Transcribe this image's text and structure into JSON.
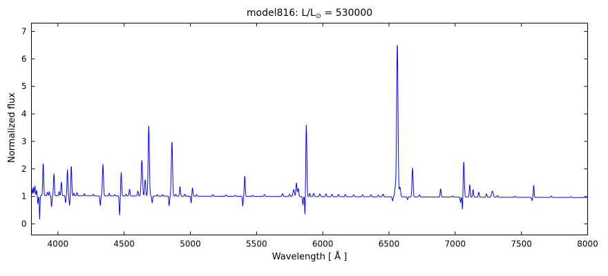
{
  "chart_data": {
    "type": "line",
    "title": {
      "prefix": "model816: L/L",
      "sub": "⊙",
      "suffix": " = 530000"
    },
    "xlabel": "Wavelength [ Å ]",
    "ylabel": "Normalized flux",
    "xlim": [
      3800,
      8000
    ],
    "ylim": [
      -0.4,
      7.3
    ],
    "xticks": [
      4000,
      4500,
      5000,
      5500,
      6000,
      6500,
      7000,
      7500,
      8000
    ],
    "yticks": [
      0,
      1,
      2,
      3,
      4,
      5,
      6,
      7
    ],
    "grid": false,
    "legend": "none",
    "line_color": "#0000ff",
    "frame_color": "#000000",
    "background": "#ffffff",
    "series_name": "normalized spectrum",
    "continuum": {
      "start_x": 3800,
      "start_y": 1.03,
      "end_x": 8000,
      "end_y": 0.96
    },
    "sample_step": 2,
    "features_note": "emission/absorption lines as [center_wavelength_A, peak_amplitude_above_continuum, gaussian_sigma_A]; negative amplitude = absorption dip",
    "features": [
      [
        3802,
        0.25,
        3
      ],
      [
        3814,
        0.3,
        3
      ],
      [
        3826,
        0.35,
        3
      ],
      [
        3840,
        0.2,
        3
      ],
      [
        3848,
        -0.3,
        3
      ],
      [
        3862,
        -0.85,
        2.5
      ],
      [
        3889,
        1.2,
        3.5
      ],
      [
        3920,
        0.12,
        3
      ],
      [
        3935,
        0.15,
        3
      ],
      [
        3952,
        -0.4,
        3
      ],
      [
        3970,
        0.8,
        3.5
      ],
      [
        4009,
        0.15,
        3
      ],
      [
        4026,
        0.5,
        3.5
      ],
      [
        4058,
        -0.25,
        3
      ],
      [
        4072,
        0.95,
        3.5
      ],
      [
        4088,
        -0.35,
        3
      ],
      [
        4101,
        1.1,
        3.5
      ],
      [
        4121,
        0.1,
        3
      ],
      [
        4144,
        0.12,
        3
      ],
      [
        4200,
        0.08,
        3
      ],
      [
        4267,
        0.06,
        3
      ],
      [
        4320,
        -0.35,
        3
      ],
      [
        4340,
        1.15,
        4
      ],
      [
        4388,
        0.1,
        3
      ],
      [
        4430,
        0.05,
        3
      ],
      [
        4466,
        -0.7,
        3
      ],
      [
        4478,
        0.85,
        3.5
      ],
      [
        4515,
        0.07,
        3
      ],
      [
        4541,
        0.25,
        3.5
      ],
      [
        4604,
        0.18,
        3.5
      ],
      [
        4634,
        1.3,
        5
      ],
      [
        4659,
        0.6,
        4
      ],
      [
        4686,
        2.55,
        4.5
      ],
      [
        4712,
        -0.25,
        3
      ],
      [
        4750,
        0.05,
        3
      ],
      [
        4790,
        0.05,
        3
      ],
      [
        4840,
        -0.35,
        3
      ],
      [
        4861,
        2.0,
        4.5
      ],
      [
        4890,
        0.07,
        3
      ],
      [
        4922,
        0.35,
        3.5
      ],
      [
        4959,
        0.07,
        3
      ],
      [
        5006,
        -0.25,
        3
      ],
      [
        5016,
        0.3,
        3.5
      ],
      [
        5048,
        0.06,
        3
      ],
      [
        5170,
        0.06,
        4
      ],
      [
        5270,
        0.05,
        4
      ],
      [
        5340,
        0.04,
        4
      ],
      [
        5396,
        -0.35,
        3
      ],
      [
        5411,
        0.75,
        3.5
      ],
      [
        5470,
        0.04,
        4
      ],
      [
        5560,
        0.07,
        4
      ],
      [
        5696,
        0.1,
        4
      ],
      [
        5750,
        0.08,
        4
      ],
      [
        5780,
        0.25,
        5
      ],
      [
        5801,
        0.5,
        4
      ],
      [
        5815,
        0.3,
        4
      ],
      [
        5850,
        -0.3,
        3
      ],
      [
        5866,
        -0.75,
        2.5
      ],
      [
        5876,
        2.6,
        4
      ],
      [
        5902,
        0.12,
        3
      ],
      [
        5932,
        0.12,
        4
      ],
      [
        5978,
        0.1,
        4
      ],
      [
        6024,
        0.1,
        4
      ],
      [
        6070,
        0.09,
        4
      ],
      [
        6118,
        0.08,
        4
      ],
      [
        6170,
        0.08,
        4
      ],
      [
        6234,
        0.07,
        4
      ],
      [
        6300,
        0.07,
        4
      ],
      [
        6364,
        0.07,
        4
      ],
      [
        6420,
        0.06,
        4
      ],
      [
        6455,
        0.1,
        4
      ],
      [
        6528,
        -0.15,
        3
      ],
      [
        6548,
        0.35,
        5
      ],
      [
        6563,
        5.6,
        5
      ],
      [
        6583,
        0.35,
        5
      ],
      [
        6640,
        -0.1,
        3
      ],
      [
        6678,
        1.05,
        4
      ],
      [
        6730,
        0.08,
        4
      ],
      [
        6890,
        0.3,
        3.5
      ],
      [
        6980,
        0.04,
        4
      ],
      [
        7040,
        -0.2,
        3
      ],
      [
        7055,
        -0.5,
        2.5
      ],
      [
        7065,
        1.3,
        4
      ],
      [
        7110,
        0.45,
        3.5
      ],
      [
        7135,
        0.28,
        3.5
      ],
      [
        7178,
        0.18,
        3.5
      ],
      [
        7236,
        0.12,
        4
      ],
      [
        7281,
        0.22,
        6
      ],
      [
        7320,
        0.06,
        4
      ],
      [
        7450,
        0.04,
        4
      ],
      [
        7580,
        -0.12,
        3
      ],
      [
        7593,
        0.45,
        3
      ],
      [
        7726,
        0.05,
        4
      ],
      [
        7875,
        0.03,
        4
      ]
    ]
  }
}
